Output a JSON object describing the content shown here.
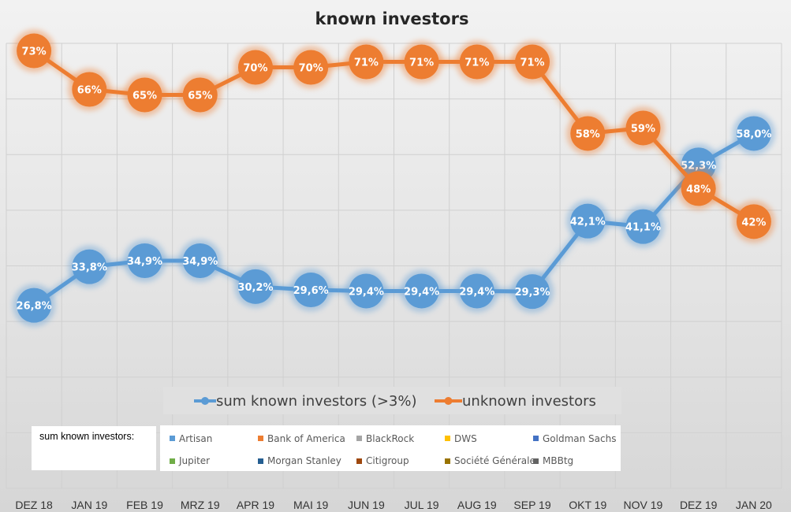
{
  "chart_data": {
    "type": "line",
    "title": "known investors",
    "categories": [
      "DEZ 18",
      "JAN 19",
      "FEB 19",
      "MRZ 19",
      "APR 19",
      "MAI 19",
      "JUN 19",
      "JUL 19",
      "AUG 19",
      "SEP 19",
      "OKT 19",
      "NOV 19",
      "DEZ 19",
      "JAN 20"
    ],
    "series": [
      {
        "name": "sum known investors (>3%)",
        "color": "#5b9bd5",
        "values": [
          26.8,
          33.8,
          34.9,
          34.9,
          30.2,
          29.6,
          29.4,
          29.4,
          29.4,
          29.3,
          42.1,
          41.1,
          52.3,
          58.0
        ],
        "labels": [
          "26,8%",
          "33,8%",
          "34,9%",
          "34,9%",
          "30,2%",
          "29,6%",
          "29,4%",
          "29,4%",
          "29,4%",
          "29,3%",
          "42,1%",
          "41,1%",
          "52,3%",
          "58,0%"
        ]
      },
      {
        "name": "unknown investors",
        "color": "#ed7d31",
        "values": [
          73,
          66,
          65,
          65,
          70,
          70,
          71,
          71,
          71,
          71,
          58,
          59,
          48,
          42
        ],
        "labels": [
          "73%",
          "66%",
          "65%",
          "65%",
          "70%",
          "70%",
          "71%",
          "71%",
          "71%",
          "71%",
          "58%",
          "59%",
          "48%",
          "42%"
        ]
      }
    ],
    "grid": true,
    "legend_position": "bottom"
  },
  "investor_legend": {
    "caption": "sum known investors:",
    "items": [
      {
        "name": "Artisan",
        "color": "#5b9bd5"
      },
      {
        "name": "Bank of America",
        "color": "#ed7d31"
      },
      {
        "name": "BlackRock",
        "color": "#a5a5a5"
      },
      {
        "name": "DWS",
        "color": "#ffc000"
      },
      {
        "name": "Goldman Sachs",
        "color": "#4472c4"
      },
      {
        "name": "Jupiter",
        "color": "#70ad47"
      },
      {
        "name": "Morgan Stanley",
        "color": "#255e91"
      },
      {
        "name": "Citigroup",
        "color": "#9e480e"
      },
      {
        "name": "Société Générale",
        "color": "#997300"
      },
      {
        "name": "MBBtg",
        "color": "#636363"
      }
    ]
  }
}
